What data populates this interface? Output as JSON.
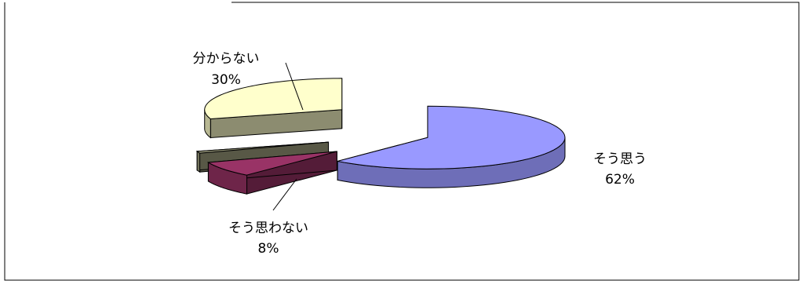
{
  "chart_data": {
    "type": "pie",
    "style": "3d-exploded",
    "legend": "none",
    "slices": [
      {
        "label": "そう思う",
        "value": 62,
        "percent_label": "62%",
        "color": "#9999ff"
      },
      {
        "label": "そう思わない",
        "value": 8,
        "percent_label": "8%",
        "color": "#993366"
      },
      {
        "label": "",
        "value": 1,
        "percent_label": "",
        "color": "#a0a080"
      },
      {
        "label": "分からない",
        "value": 30,
        "percent_label": "30%",
        "color": "#ffffcc"
      }
    ]
  }
}
